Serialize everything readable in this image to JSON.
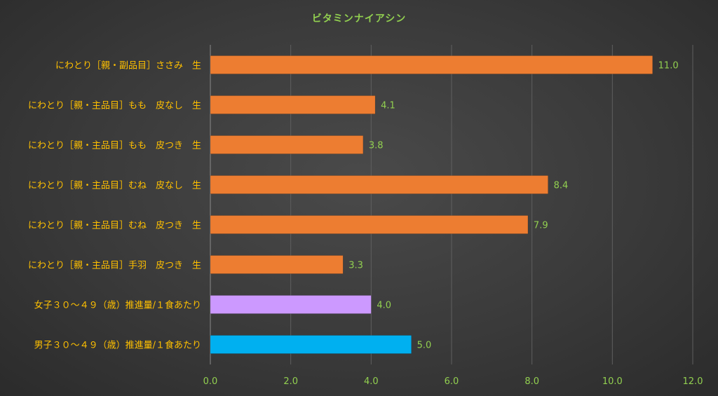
{
  "chart_data": {
    "type": "bar",
    "orientation": "horizontal",
    "title": "ビタミンナイアシン",
    "categories": [
      "にわとり［親・副品目］ささみ　生",
      "にわとり［親・主品目］もも　皮なし　生",
      "にわとり［親・主品目］もも　皮つき　生",
      "にわとり［親・主品目］むね　皮なし　生",
      "にわとり［親・主品目］むね　皮つき　生",
      "にわとり［親・主品目］手羽　皮つき　生",
      "女子３０～４９（歳）推進量/１食あたり",
      "男子３０～４９（歳）推進量/１食あたり"
    ],
    "values": [
      11.0,
      4.1,
      3.8,
      8.4,
      7.9,
      3.3,
      4.0,
      5.0
    ],
    "value_labels": [
      "11.0",
      "4.1",
      "3.8",
      "8.4",
      "7.9",
      "3.3",
      "4.0",
      "5.0"
    ],
    "bar_colors": [
      "#ED7D31",
      "#ED7D31",
      "#ED7D31",
      "#ED7D31",
      "#ED7D31",
      "#ED7D31",
      "#CC99FF",
      "#00B0F0"
    ],
    "xlim": [
      0,
      12
    ],
    "x_ticks": [
      "0.0",
      "2.0",
      "4.0",
      "6.0",
      "8.0",
      "10.0",
      "12.0"
    ],
    "grid": "vertical",
    "xlabel": "",
    "ylabel": ""
  },
  "colors": {
    "title": "#92D050",
    "category_labels": "#FFC000",
    "tick_labels": "#92D050",
    "data_labels": "#92D050",
    "grid": "#5f5f5f",
    "axis": "#8a8a8a"
  }
}
